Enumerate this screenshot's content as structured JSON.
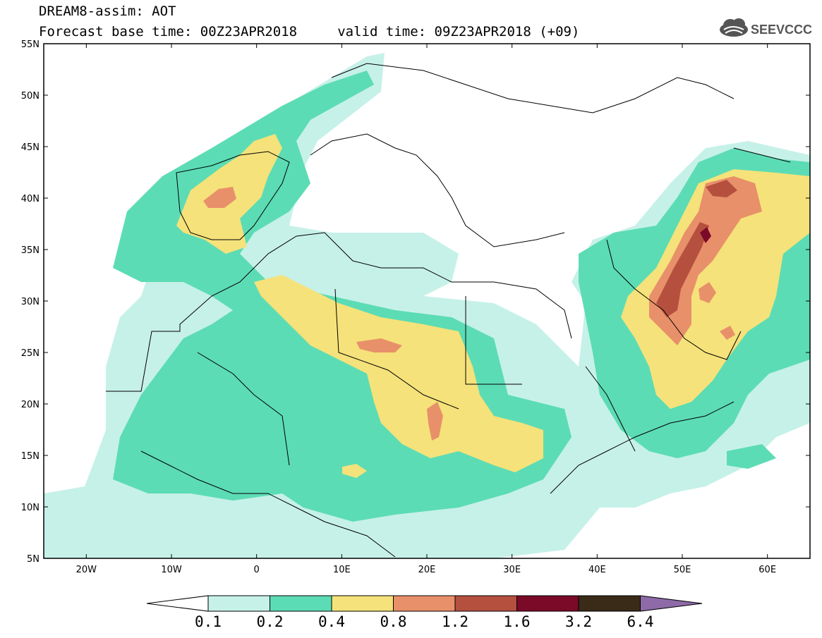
{
  "header": {
    "title_line1": "DREAM8-assim: AOT",
    "title_line2": "Forecast base time: 00Z23APR2018     valid time: 09Z23APR2018 (+09)"
  },
  "logo": {
    "text": "SEEVCCC",
    "icon": "cloud-icon"
  },
  "map": {
    "lat_ticks": [
      "55N",
      "50N",
      "45N",
      "40N",
      "35N",
      "30N",
      "25N",
      "20N",
      "15N",
      "10N",
      "5N"
    ],
    "lon_ticks": [
      "20W",
      "10W",
      "0",
      "10E",
      "20E",
      "30E",
      "40E",
      "50E",
      "60E"
    ],
    "lon_range": [
      -25,
      65
    ],
    "lat_range": [
      5,
      55
    ]
  },
  "colorbar": {
    "levels": [
      "0.1",
      "0.2",
      "0.4",
      "0.8",
      "1.2",
      "1.6",
      "3.2",
      "6.4"
    ],
    "colors": [
      "#c6f1e8",
      "#5cdcb4",
      "#f5e27a",
      "#e8906a",
      "#b5503f",
      "#7a0a28",
      "#3a2a18",
      "#8e6aa8"
    ],
    "below_color": "#ffffff",
    "above_color": "#8e6aa8"
  }
}
